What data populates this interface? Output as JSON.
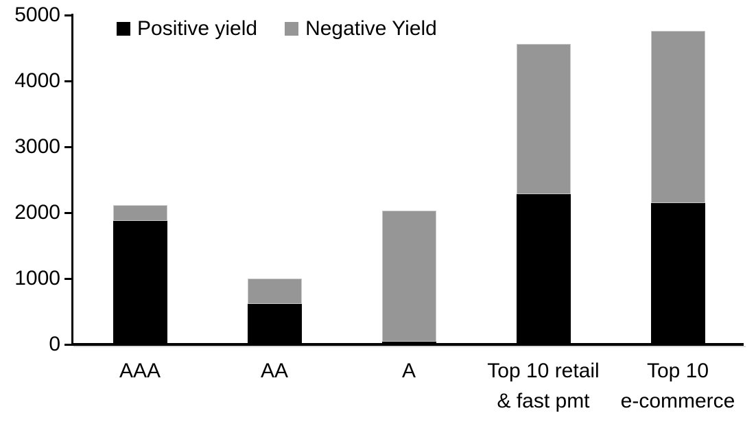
{
  "chart_data": {
    "type": "bar",
    "stacked": true,
    "title": "",
    "xlabel": "",
    "ylabel": "",
    "categories": [
      "AAA",
      "AA",
      "A",
      "Top 10 retail\n& fast pmt",
      "Top 10\ne-commerce"
    ],
    "series": [
      {
        "name": "Positive yield",
        "color": "#000000",
        "values": [
          1880,
          610,
          40,
          2280,
          2150
        ]
      },
      {
        "name": "Negative Yield",
        "color": "#969696",
        "values": [
          230,
          390,
          1990,
          2280,
          2610
        ]
      }
    ],
    "totals": [
      2110,
      1000,
      2030,
      4560,
      4760
    ],
    "ylim": [
      0,
      5000
    ],
    "yticks": [
      0,
      1000,
      2000,
      3000,
      4000,
      5000
    ],
    "grid": false,
    "legend_position": "top-left-inside",
    "background_color": "#ffffff",
    "axis_color": "#000000",
    "gray_bar_border_color": "#c9c9c9"
  }
}
